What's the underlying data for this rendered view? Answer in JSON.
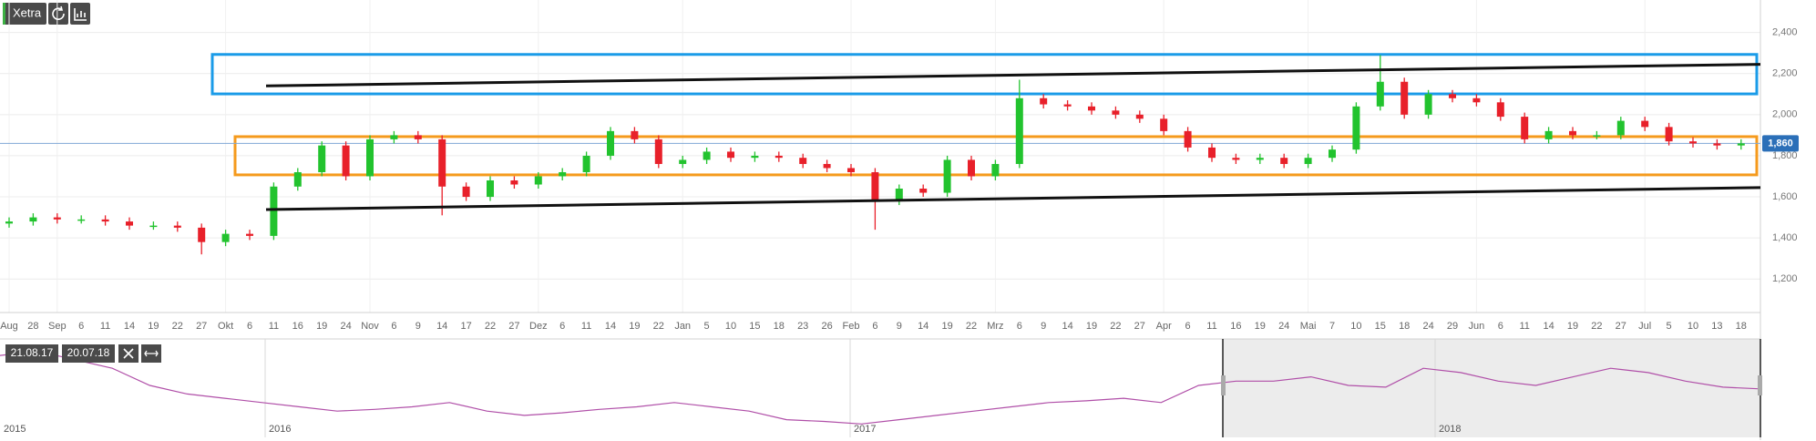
{
  "chart_data": {
    "type": "candlestick",
    "exchange": "Xetra",
    "categories": [
      "Aug",
      "28",
      "Sep",
      "6",
      "11",
      "14",
      "19",
      "22",
      "27",
      "Okt",
      "6",
      "11",
      "16",
      "19",
      "24",
      "Nov",
      "6",
      "9",
      "14",
      "17",
      "22",
      "27",
      "Dez",
      "6",
      "11",
      "14",
      "19",
      "22",
      "Jan",
      "5",
      "10",
      "15",
      "18",
      "23",
      "26",
      "Feb",
      "6",
      "9",
      "14",
      "19",
      "22",
      "Mrz",
      "6",
      "9",
      "14",
      "19",
      "22",
      "27",
      "Apr",
      "6",
      "11",
      "16",
      "19",
      "24",
      "Mai",
      "7",
      "10",
      "15",
      "18",
      "24",
      "29",
      "Jun",
      "6",
      "11",
      "14",
      "19",
      "22",
      "27",
      "Jul",
      "5",
      "10",
      "13",
      "18"
    ],
    "open": [
      1470,
      1480,
      1500,
      1490,
      1490,
      1480,
      1460,
      1460,
      1450,
      1380,
      1420,
      1410,
      1650,
      1720,
      1850,
      1700,
      1880,
      1900,
      1880,
      1650,
      1600,
      1680,
      1660,
      1700,
      1720,
      1800,
      1920,
      1880,
      1760,
      1780,
      1820,
      1790,
      1800,
      1790,
      1760,
      1740,
      1720,
      1580,
      1640,
      1620,
      1780,
      1700,
      1760,
      2080,
      2050,
      2040,
      2020,
      2000,
      1980,
      1920,
      1840,
      1790,
      1780,
      1790,
      1760,
      1790,
      1830,
      2040,
      2160,
      2000,
      2100,
      2080,
      2060,
      1990,
      1880,
      1920,
      1900,
      1900,
      1970,
      1940,
      1870,
      1860,
      1850
    ],
    "high": [
      1500,
      1520,
      1520,
      1510,
      1510,
      1500,
      1480,
      1480,
      1470,
      1440,
      1440,
      1670,
      1740,
      1870,
      1870,
      1900,
      1920,
      1920,
      1900,
      1670,
      1700,
      1700,
      1720,
      1740,
      1820,
      1940,
      1940,
      1900,
      1800,
      1840,
      1840,
      1820,
      1820,
      1810,
      1780,
      1760,
      1740,
      1660,
      1660,
      1800,
      1800,
      1780,
      2170,
      2100,
      2070,
      2060,
      2040,
      2020,
      2000,
      1940,
      1860,
      1810,
      1810,
      1810,
      1810,
      1850,
      2060,
      2290,
      2180,
      2120,
      2120,
      2100,
      2080,
      2010,
      1940,
      1940,
      1920,
      1990,
      1990,
      1960,
      1890,
      1880,
      1880
    ],
    "low": [
      1450,
      1460,
      1470,
      1470,
      1460,
      1440,
      1440,
      1430,
      1320,
      1360,
      1390,
      1390,
      1630,
      1700,
      1680,
      1680,
      1860,
      1860,
      1510,
      1580,
      1580,
      1640,
      1640,
      1680,
      1700,
      1780,
      1860,
      1740,
      1740,
      1760,
      1770,
      1770,
      1770,
      1740,
      1720,
      1700,
      1440,
      1560,
      1600,
      1600,
      1680,
      1680,
      1740,
      2030,
      2020,
      2000,
      1980,
      1960,
      1900,
      1820,
      1770,
      1760,
      1760,
      1740,
      1740,
      1770,
      1810,
      2020,
      1980,
      1980,
      2060,
      2040,
      1970,
      1860,
      1860,
      1880,
      1880,
      1880,
      1920,
      1850,
      1840,
      1830,
      1830
    ],
    "close": [
      1480,
      1500,
      1490,
      1490,
      1480,
      1460,
      1460,
      1450,
      1380,
      1420,
      1410,
      1650,
      1720,
      1850,
      1700,
      1880,
      1900,
      1880,
      1650,
      1600,
      1680,
      1660,
      1700,
      1720,
      1800,
      1920,
      1880,
      1760,
      1780,
      1820,
      1790,
      1800,
      1790,
      1760,
      1740,
      1720,
      1580,
      1640,
      1620,
      1780,
      1700,
      1760,
      2080,
      2050,
      2040,
      2020,
      2000,
      1980,
      1920,
      1840,
      1790,
      1780,
      1790,
      1760,
      1790,
      1830,
      2040,
      2160,
      2000,
      2100,
      2080,
      2060,
      1990,
      1880,
      1920,
      1900,
      1900,
      1970,
      1940,
      1870,
      1860,
      1850,
      1860
    ],
    "up_color": "#22c32e",
    "down_color": "#e8202a",
    "ylim": [
      1037,
      2558
    ],
    "yticks": [
      {
        "value": 1200,
        "label": "1,200"
      },
      {
        "value": 1400,
        "label": "1,400"
      },
      {
        "value": 1600,
        "label": "1,600"
      },
      {
        "value": 1800,
        "label": "1,800"
      },
      {
        "value": 2000,
        "label": "2,000"
      },
      {
        "value": 2200,
        "label": "2,200"
      },
      {
        "value": 2400,
        "label": "2,400"
      }
    ],
    "grid": true,
    "last_price": {
      "value": 1860,
      "label": "1,860"
    },
    "trend_lines": [
      {
        "start": 2140,
        "end": 2245
      },
      {
        "start": 1538,
        "end": 1645
      }
    ],
    "boxes": [
      {
        "top": 2293,
        "bottom": 2101,
        "color": "#1a9be8"
      },
      {
        "top": 1893,
        "bottom": 1707,
        "color": "#f59a1c"
      }
    ]
  },
  "navigator": {
    "range_start": "21.08.17",
    "range_end": "20.07.18",
    "years": [
      "2015",
      "2016",
      "2017",
      "2018"
    ],
    "values": [
      2250,
      2300,
      2200,
      2100,
      1900,
      1800,
      1750,
      1700,
      1650,
      1600,
      1620,
      1650,
      1700,
      1600,
      1550,
      1580,
      1620,
      1650,
      1700,
      1650,
      1600,
      1500,
      1480,
      1450,
      1500,
      1550,
      1600,
      1650,
      1700,
      1720,
      1750,
      1700,
      1900,
      1950,
      1950,
      2000,
      1900,
      1880,
      2100,
      2050,
      1950,
      1900,
      2000,
      2100,
      2050,
      1950,
      1880,
      1860
    ],
    "ylim": [
      1400,
      2400
    ],
    "color": "#b04fa8"
  }
}
